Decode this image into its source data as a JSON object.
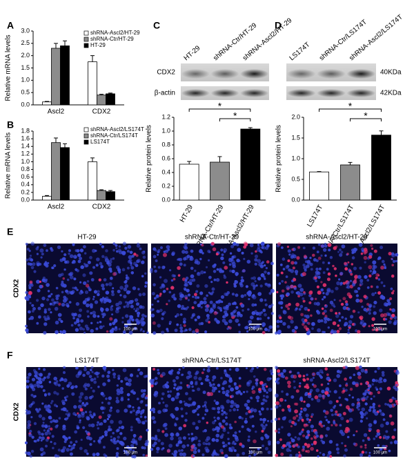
{
  "chart_data": [
    {
      "type": "bar",
      "panel": "A",
      "ylabel": "Relative mRNA levels",
      "categories": [
        "Ascl2",
        "CDX2"
      ],
      "series": [
        {
          "name": "shRNA-Ascl2/HT-29",
          "color": "#ffffff",
          "values": [
            0.12,
            1.75
          ],
          "errors": [
            0.02,
            0.25
          ]
        },
        {
          "name": "shRNA-Ctr/HT-29",
          "color": "#8c8c8c",
          "values": [
            2.3,
            0.4
          ],
          "errors": [
            0.2,
            0.03
          ]
        },
        {
          "name": "HT-29",
          "color": "#000000",
          "values": [
            2.4,
            0.45
          ],
          "errors": [
            0.2,
            0.03
          ]
        }
      ],
      "ylim": [
        0,
        3
      ],
      "yticks": [
        {
          "value": 0,
          "label": "0.0"
        },
        {
          "value": 0.5,
          "label": "0.5"
        },
        {
          "value": 1,
          "label": "1.0"
        },
        {
          "value": 1.5,
          "label": "1.5"
        },
        {
          "value": 2,
          "label": "2.0"
        },
        {
          "value": 2.5,
          "label": "2.5"
        },
        {
          "value": 3,
          "label": "3.0"
        }
      ]
    },
    {
      "type": "bar",
      "panel": "B",
      "ylabel": "Relative mRNA levels",
      "categories": [
        "Ascl2",
        "CDX2"
      ],
      "series": [
        {
          "name": "shRNA-Ascl2/LS174T",
          "color": "#ffffff",
          "values": [
            0.1,
            1.0
          ],
          "errors": [
            0.02,
            0.1
          ]
        },
        {
          "name": "shRNA-Ctr/LS174T",
          "color": "#8c8c8c",
          "values": [
            1.5,
            0.25
          ],
          "errors": [
            0.12,
            0.02
          ]
        },
        {
          "name": "LS174T",
          "color": "#000000",
          "values": [
            1.37,
            0.22
          ],
          "errors": [
            0.1,
            0.03
          ]
        }
      ],
      "ylim": [
        0,
        1.8
      ],
      "yticks": [
        {
          "value": 0,
          "label": "0.0"
        },
        {
          "value": 0.2,
          "label": "0.2"
        },
        {
          "value": 0.4,
          "label": "0.4"
        },
        {
          "value": 0.6,
          "label": "0.6"
        },
        {
          "value": 0.8,
          "label": "0.8"
        },
        {
          "value": 1,
          "label": "1.0"
        },
        {
          "value": 1.2,
          "label": "1.2"
        },
        {
          "value": 1.4,
          "label": "1.4"
        },
        {
          "value": 1.6,
          "label": "1.6"
        },
        {
          "value": 1.8,
          "label": "1.8"
        }
      ]
    },
    {
      "type": "bar",
      "panel": "C",
      "ylabel": "Relative protein levels",
      "categories": [
        "HT-29",
        "shRNA-Ctr/HT-29",
        "shRNA-Ascl2/HT-29"
      ],
      "values": [
        0.52,
        0.55,
        1.03
      ],
      "errors": [
        0.04,
        0.08,
        0.02
      ],
      "colors": [
        "#ffffff",
        "#8c8c8c",
        "#000000"
      ],
      "ylim": [
        0,
        1.2
      ],
      "yticks": [
        {
          "value": 0,
          "label": "0.0"
        },
        {
          "value": 0.2,
          "label": "0.2"
        },
        {
          "value": 0.4,
          "label": "0.4"
        },
        {
          "value": 0.6,
          "label": "0.6"
        },
        {
          "value": 0.8,
          "label": "0.8"
        },
        {
          "value": 1,
          "label": "1.0"
        },
        {
          "value": 1.2,
          "label": "1.2"
        }
      ],
      "annotations": [
        {
          "text": "*",
          "between": [
            "HT-29",
            "shRNA-Ascl2/HT-29"
          ]
        },
        {
          "text": "*",
          "between": [
            "shRNA-Ctr/HT-29",
            "shRNA-Ascl2/HT-29"
          ]
        }
      ]
    },
    {
      "type": "bar",
      "panel": "D",
      "ylabel": "Relative protein levels",
      "categories": [
        "LS174T",
        "shRNA-Ctr/LS174T",
        "shRNA-Ascl2/LS174T"
      ],
      "values": [
        0.68,
        0.85,
        1.57
      ],
      "errors": [
        0.01,
        0.06,
        0.1
      ],
      "colors": [
        "#ffffff",
        "#8c8c8c",
        "#000000"
      ],
      "ylim": [
        0,
        2
      ],
      "yticks": [
        {
          "value": 0,
          "label": "0.0"
        },
        {
          "value": 0.5,
          "label": "0.5"
        },
        {
          "value": 1,
          "label": "1.0"
        },
        {
          "value": 1.5,
          "label": "1.5"
        },
        {
          "value": 2,
          "label": "2.0"
        }
      ],
      "annotations": [
        {
          "text": "*",
          "between": [
            "LS174T",
            "shRNA-Ascl2/LS174T"
          ]
        },
        {
          "text": "*",
          "between": [
            "shRNA-Ctr/LS174T",
            "shRNA-Ascl2/LS174T"
          ]
        }
      ]
    }
  ],
  "blots": [
    {
      "lanes": [
        "HT-29",
        "shRNA-Ctr/HT-29",
        "shRNA-Ascl2/HT-29"
      ],
      "rows": [
        "CDX2",
        "β-actin"
      ]
    },
    {
      "lanes": [
        "LS174T",
        "shRNA-Ctr/LS174T",
        "shRNA-Ascl2/LS174T"
      ],
      "sizes": [
        "40KDa",
        "42KDa"
      ]
    }
  ],
  "images": [
    {
      "panel": "E",
      "row_label": "CDX2",
      "titles": [
        "HT-29",
        "shRNA-Ctr/HT-29",
        "shRNA-Ascl2/HT-29"
      ],
      "scale": "100 μm"
    },
    {
      "panel": "F",
      "row_label": "CDX2",
      "titles": [
        "LS174T",
        "shRNA-Ctr/LS174T",
        "shRNA-Ascl2/LS174T"
      ],
      "scale": "100 μm"
    }
  ]
}
